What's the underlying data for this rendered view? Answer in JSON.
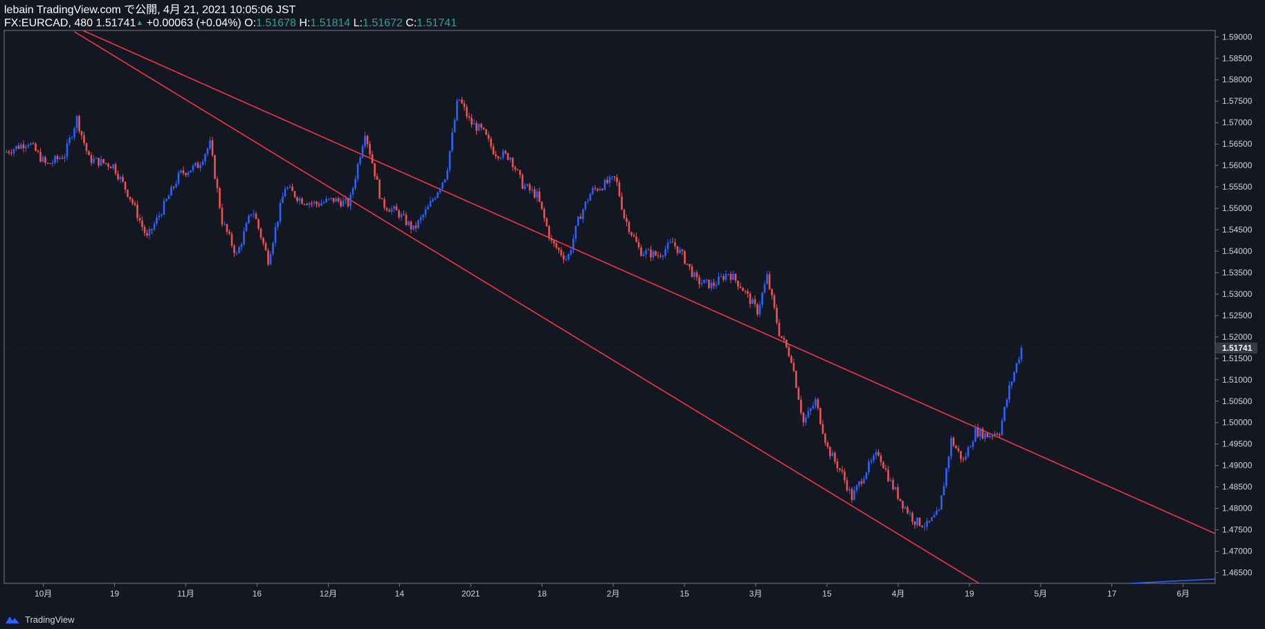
{
  "header": {
    "published": "lebain TradingView.com で公開, 4月 21, 2021 10:05:06 JST",
    "symbol": "FX:EURCAD, 480",
    "last": "1.51741",
    "change": "+0.00063 (+0.04%)",
    "o_label": "O:",
    "o_value": "1.51678",
    "h_label": "H:",
    "h_value": "1.51814",
    "l_label": "L:",
    "l_value": "1.51672",
    "c_label": "C:",
    "c_value": "1.51741"
  },
  "footer": {
    "brand": "TradingView"
  },
  "colors": {
    "background": "#131722",
    "up": "#2962ff",
    "down": "#ef5350",
    "channel": "#f23645",
    "axis_text": "#d1d4dc",
    "teal": "#26a69a"
  },
  "chart_data": {
    "type": "line",
    "title": "FX:EURCAD, 480",
    "x_ticks": [
      "10月",
      "19",
      "11月",
      "16",
      "12月",
      "14",
      "2021",
      "18",
      "2月",
      "15",
      "3月",
      "15",
      "4月",
      "19",
      "5月",
      "17",
      "6月"
    ],
    "y_ticks": [
      "1.59000",
      "1.58500",
      "1.58000",
      "1.57500",
      "1.57000",
      "1.56500",
      "1.56000",
      "1.55500",
      "1.55000",
      "1.54500",
      "1.54000",
      "1.53500",
      "1.53000",
      "1.52500",
      "1.52000",
      "1.51500",
      "1.51000",
      "1.50500",
      "1.50000",
      "1.49500",
      "1.49000",
      "1.48500",
      "1.48000",
      "1.47500",
      "1.47000",
      "1.46500"
    ],
    "ylim": [
      1.4625,
      1.5915
    ],
    "x_range": [
      0,
      1000
    ],
    "current_price_label": "1.51741",
    "current_price": 1.51741,
    "series": [
      {
        "name": "EURCAD 480",
        "points": [
          [
            0,
            1.563
          ],
          [
            20,
            1.5655
          ],
          [
            35,
            1.56
          ],
          [
            50,
            1.5625
          ],
          [
            60,
            1.571
          ],
          [
            70,
            1.5615
          ],
          [
            90,
            1.56
          ],
          [
            105,
            1.552
          ],
          [
            118,
            1.543
          ],
          [
            130,
            1.5495
          ],
          [
            145,
            1.558
          ],
          [
            160,
            1.56
          ],
          [
            170,
            1.565
          ],
          [
            180,
            1.547
          ],
          [
            192,
            1.539
          ],
          [
            205,
            1.55
          ],
          [
            218,
            1.538
          ],
          [
            232,
            1.555
          ],
          [
            245,
            1.552
          ],
          [
            258,
            1.551
          ],
          [
            272,
            1.552
          ],
          [
            285,
            1.551
          ],
          [
            298,
            1.568
          ],
          [
            312,
            1.551
          ],
          [
            325,
            1.549
          ],
          [
            338,
            1.545
          ],
          [
            350,
            1.55
          ],
          [
            365,
            1.558
          ],
          [
            375,
            1.576
          ],
          [
            385,
            1.57
          ],
          [
            395,
            1.568
          ],
          [
            405,
            1.563
          ],
          [
            418,
            1.562
          ],
          [
            428,
            1.5555
          ],
          [
            440,
            1.553
          ],
          [
            452,
            1.542
          ],
          [
            465,
            1.538
          ],
          [
            475,
            1.548
          ],
          [
            485,
            1.554
          ],
          [
            495,
            1.5555
          ],
          [
            505,
            1.557
          ],
          [
            512,
            1.548
          ],
          [
            525,
            1.54
          ],
          [
            540,
            1.539
          ],
          [
            552,
            1.542
          ],
          [
            560,
            1.539
          ],
          [
            572,
            1.533
          ],
          [
            585,
            1.532
          ],
          [
            598,
            1.535
          ],
          [
            608,
            1.532
          ],
          [
            622,
            1.526
          ],
          [
            630,
            1.534
          ],
          [
            640,
            1.521
          ],
          [
            650,
            1.515
          ],
          [
            660,
            1.5
          ],
          [
            670,
            1.505
          ],
          [
            680,
            1.494
          ],
          [
            692,
            1.488
          ],
          [
            700,
            1.4825
          ],
          [
            712,
            1.489
          ],
          [
            722,
            1.493
          ],
          [
            732,
            1.486
          ],
          [
            742,
            1.481
          ],
          [
            752,
            1.477
          ],
          [
            762,
            1.476
          ],
          [
            772,
            1.479
          ],
          [
            782,
            1.496
          ],
          [
            792,
            1.491
          ],
          [
            802,
            1.498
          ],
          [
            812,
            1.497
          ],
          [
            822,
            1.498
          ],
          [
            830,
            1.508
          ],
          [
            840,
            1.5174
          ]
        ]
      }
    ],
    "annotations": [
      {
        "type": "trendline",
        "label": "channel upper",
        "from": [
          -190,
          1.6235
        ],
        "to": [
          1000,
          1.4741
        ]
      },
      {
        "type": "trendline",
        "label": "channel lower",
        "from": [
          58,
          1.5912
        ],
        "to": [
          805,
          1.4625
        ]
      },
      {
        "type": "line",
        "label": "future projection",
        "from": [
          930,
          1.4625
        ],
        "to": [
          1000,
          1.4635
        ]
      }
    ]
  }
}
